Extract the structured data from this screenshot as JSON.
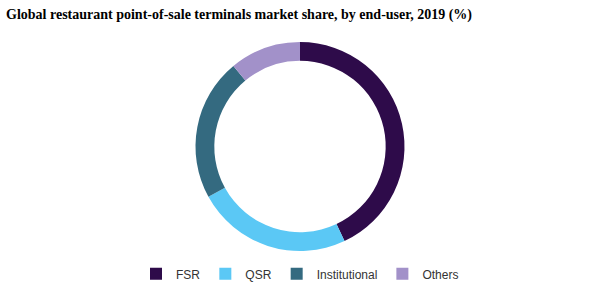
{
  "chart_data": {
    "type": "pie",
    "title": "Global restaurant point-of-sale terminals market share, by end-user, 2019 (%)",
    "categories": [
      "FSR",
      "QSR",
      "Institutional",
      "Others"
    ],
    "values": [
      43,
      24,
      22,
      11
    ],
    "colors": [
      "#2e0b4a",
      "#5bc8f5",
      "#346a80",
      "#a291c9"
    ],
    "legend": "bottom",
    "data_labels": false
  }
}
